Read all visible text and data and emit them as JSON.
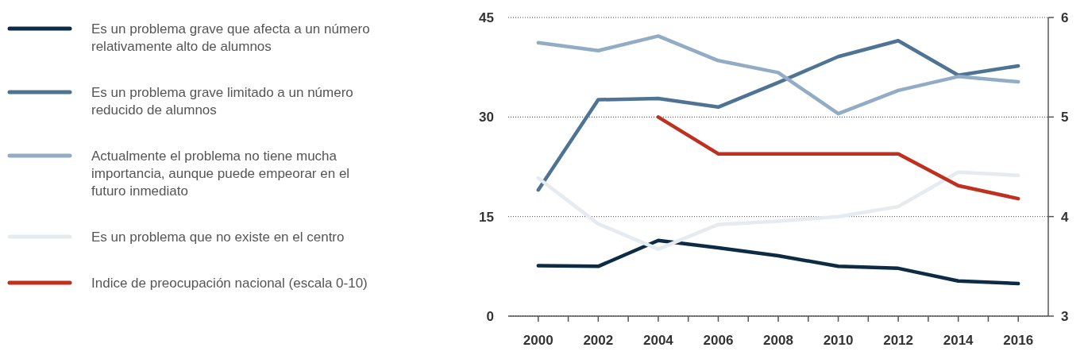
{
  "chart_data": {
    "type": "line",
    "x": [
      2000,
      2002,
      2004,
      2006,
      2008,
      2010,
      2012,
      2014,
      2016
    ],
    "xlim": [
      1999,
      2017
    ],
    "xticks": [
      2000,
      {
        "value": 2001,
        "label": null
      },
      2002,
      {
        "value": 2003,
        "label": null
      },
      2004,
      {
        "value": 2005,
        "label": null
      },
      2006,
      {
        "value": 2007,
        "label": null
      },
      2008,
      {
        "value": 2009,
        "label": null
      },
      2010,
      {
        "value": 2011,
        "label": null
      },
      2012,
      {
        "value": 2013,
        "label": null
      },
      2014,
      {
        "value": 2015,
        "label": null
      },
      2016
    ],
    "ylim": [
      0,
      45
    ],
    "yticks": [
      0,
      15,
      30,
      45
    ],
    "y2lim": [
      3,
      6
    ],
    "y2ticks": [
      3,
      4,
      5,
      6
    ],
    "grid": "y",
    "legend": "left",
    "line_style": "solid",
    "marker": "none",
    "series": [
      {
        "name": "Es un problema grave que afecta a un número relativamente alto de alumnos",
        "color": "#0d2b45",
        "values": [
          7.6,
          7.5,
          11.4,
          10.3,
          9.1,
          7.5,
          7.2,
          5.3,
          4.9
        ]
      },
      {
        "name": "Es un problema grave limitado a un número reducido de alumnos",
        "color": "#4f7493",
        "values": [
          19.0,
          32.6,
          32.8,
          31.5,
          35.2,
          39.1,
          41.5,
          36.3,
          37.7
        ]
      },
      {
        "name": "Actualmente el problema no tiene mucha importancia, aunque puede empeorar en el futuro inmediato",
        "color": "#91acc4",
        "values": [
          41.2,
          40.0,
          42.2,
          38.5,
          36.7,
          30.5,
          34.0,
          36.1,
          35.3
        ]
      },
      {
        "name": "Es un problema que no existe en el centro",
        "color": "#e6ebf0",
        "values": [
          20.8,
          13.9,
          10.1,
          13.8,
          14.3,
          15.0,
          16.5,
          21.7,
          21.2
        ]
      },
      {
        "name": "Indice de preocupación nacional (escala 0-10)",
        "color": "#c0301f",
        "axis": "y2",
        "values": [
          null,
          null,
          5.0,
          4.63,
          4.63,
          4.63,
          4.63,
          4.31,
          4.18
        ]
      }
    ]
  }
}
